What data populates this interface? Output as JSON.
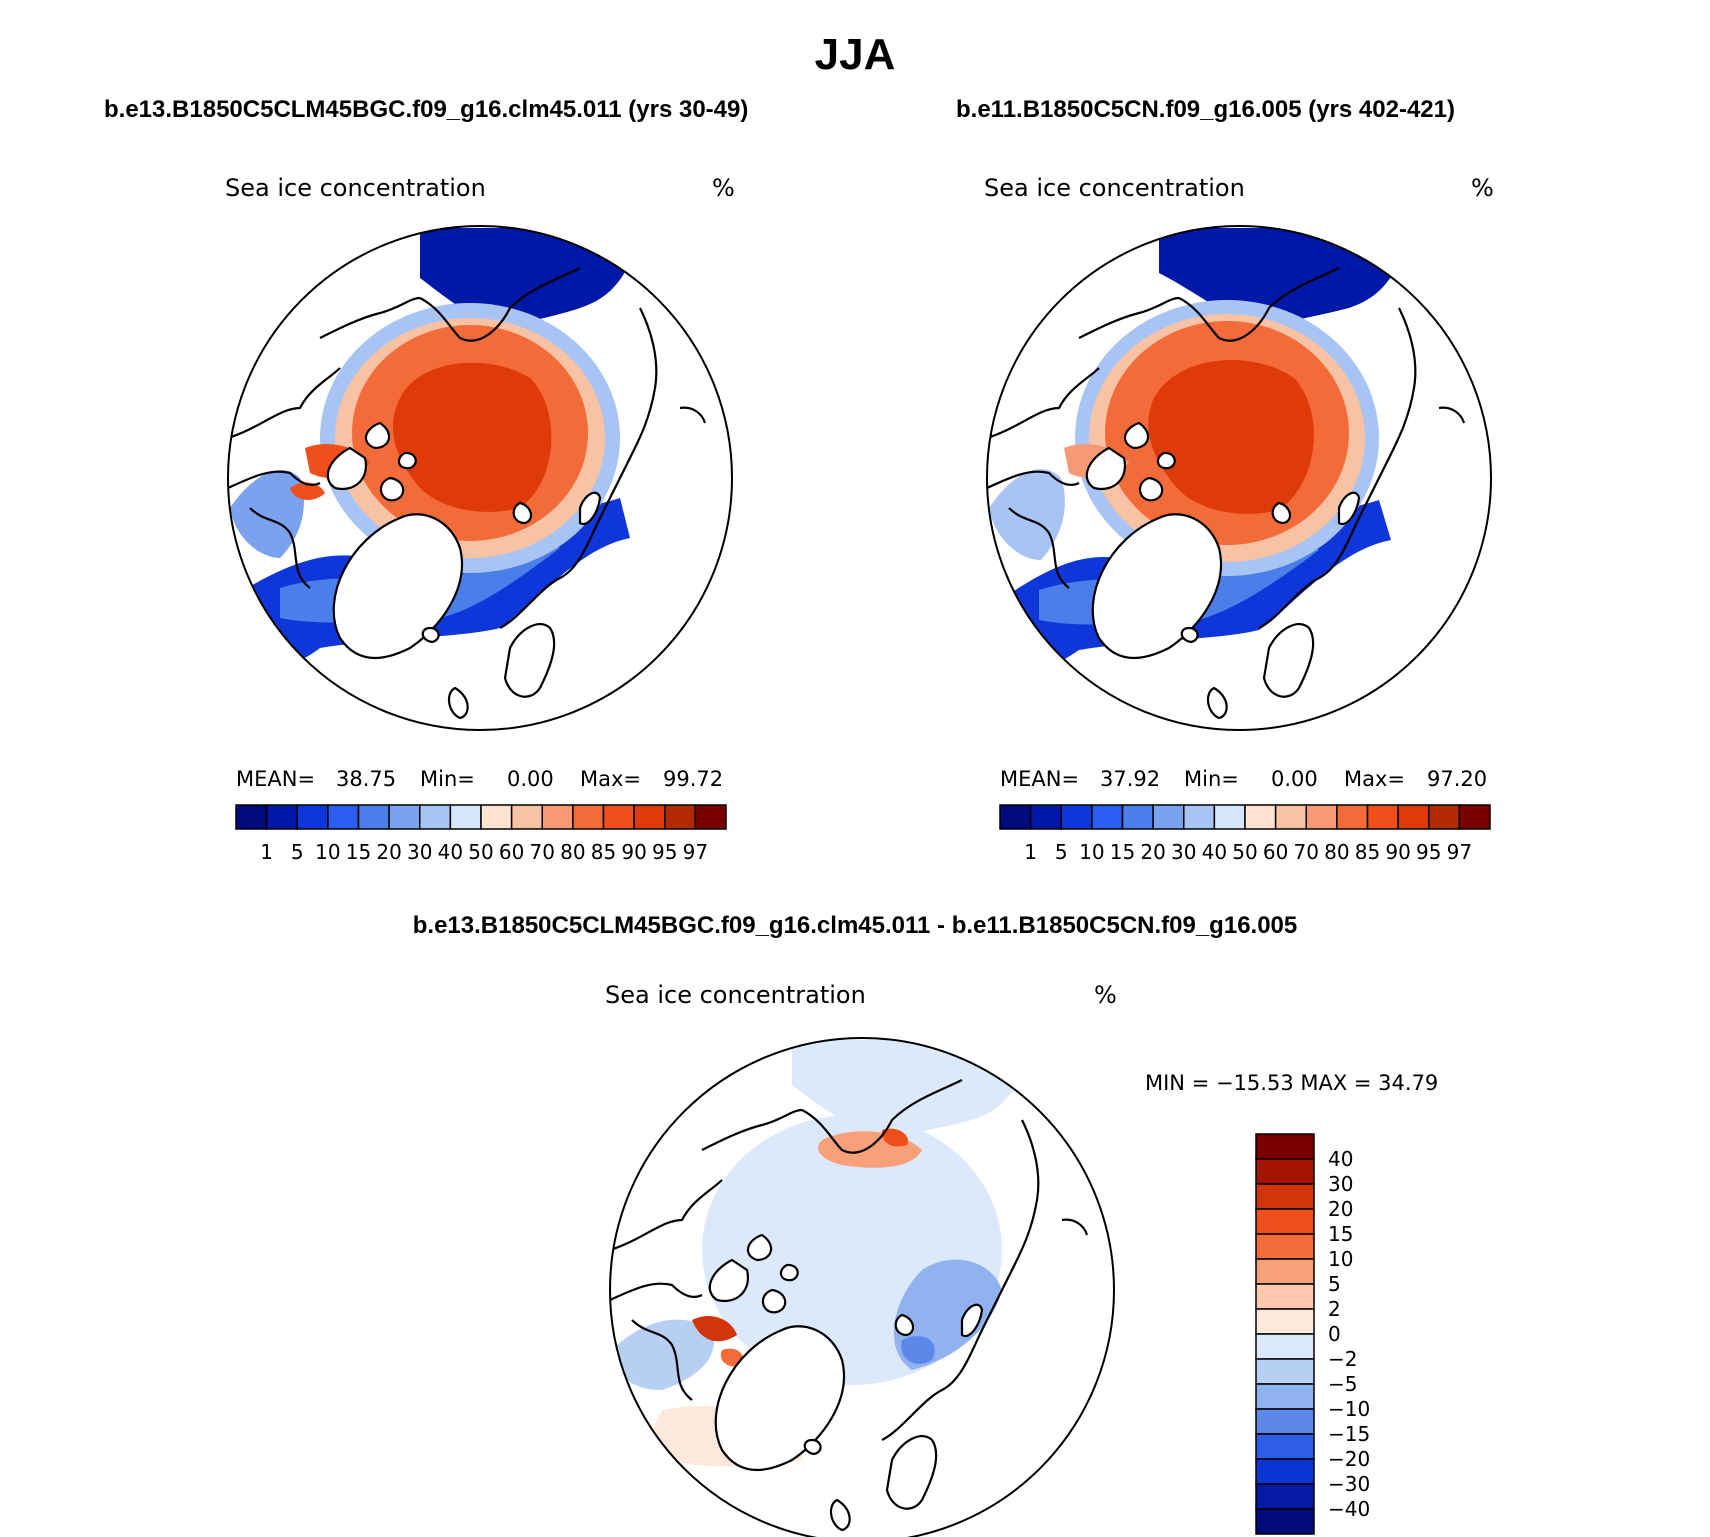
{
  "figure": {
    "title": "JJA",
    "diff_title": "b.e13.B1850C5CLM45BGC.f09_g16.clm45.011 - b.e11.B1850C5CN.f09_g16.005"
  },
  "panels": [
    {
      "case_title": "b.e13.B1850C5CLM45BGC.f09_g16.clm45.011 (yrs 30-49)",
      "variable": "Sea ice concentration",
      "units": "%",
      "stats": {
        "mean_label": "MEAN=",
        "mean": "38.75",
        "min_label": "Min=",
        "min": "0.00",
        "max_label": "Max=",
        "max": "99.72"
      }
    },
    {
      "case_title": "b.e11.B1850C5CN.f09_g16.005 (yrs 402-421)",
      "variable": "Sea ice concentration",
      "units": "%",
      "stats": {
        "mean_label": "MEAN=",
        "mean": "37.92",
        "min_label": "Min=",
        "min": "0.00",
        "max_label": "Max=",
        "max": "97.20"
      }
    },
    {
      "variable": "Sea ice concentration",
      "units": "%",
      "stats_text": "MIN = −15.53 MAX =  34.79"
    }
  ],
  "chart_data": [
    {
      "type": "heatmap",
      "title": "Sea ice concentration",
      "units": "%",
      "period": "JJA",
      "case": "b.e13.B1850C5CLM45BGC.f09_g16.clm45.011 (yrs 30-49)",
      "mean": 38.75,
      "min": 0.0,
      "max": 99.72,
      "colorbar_levels": [
        1,
        5,
        10,
        15,
        20,
        30,
        40,
        50,
        60,
        70,
        80,
        85,
        90,
        95,
        97
      ],
      "colorbar_labels": [
        "1",
        "5",
        "10",
        "15",
        "20",
        "30",
        "40",
        "50",
        "60",
        "70",
        "80",
        "85",
        "90",
        "95",
        "97"
      ],
      "colors": [
        "#000a7c",
        "#0018a8",
        "#0e36d8",
        "#2a5ef2",
        "#4a7ee8",
        "#7aa2ee",
        "#a8c4f4",
        "#d6e6fa",
        "#fde3d0",
        "#f8c2a4",
        "#f59a74",
        "#f46b3a",
        "#f04e1a",
        "#de3a0a",
        "#b02a02",
        "#7a0000"
      ],
      "projection": "north polar stereographic"
    },
    {
      "type": "heatmap",
      "title": "Sea ice concentration",
      "units": "%",
      "period": "JJA",
      "case": "b.e11.B1850C5CN.f09_g16.005 (yrs 402-421)",
      "mean": 37.92,
      "min": 0.0,
      "max": 97.2,
      "colorbar_levels": [
        1,
        5,
        10,
        15,
        20,
        30,
        40,
        50,
        60,
        70,
        80,
        85,
        90,
        95,
        97
      ],
      "colorbar_labels": [
        "1",
        "5",
        "10",
        "15",
        "20",
        "30",
        "40",
        "50",
        "60",
        "70",
        "80",
        "85",
        "90",
        "95",
        "97"
      ],
      "colors": [
        "#000a7c",
        "#0018a8",
        "#0e36d8",
        "#2a5ef2",
        "#4a7ee8",
        "#7aa2ee",
        "#a8c4f4",
        "#d6e6fa",
        "#fde3d0",
        "#f8c2a4",
        "#f59a74",
        "#f46b3a",
        "#f04e1a",
        "#de3a0a",
        "#b02a02",
        "#7a0000"
      ],
      "projection": "north polar stereographic"
    },
    {
      "type": "heatmap",
      "title": "Sea ice concentration",
      "units": "%",
      "period": "JJA",
      "case": "b.e13.B1850C5CLM45BGC.f09_g16.clm45.011 - b.e11.B1850C5CN.f09_g16.005",
      "min": -15.53,
      "max": 34.79,
      "colorbar_levels": [
        40,
        30,
        20,
        15,
        10,
        5,
        2,
        0,
        -2,
        -5,
        -10,
        -15,
        -20,
        -30,
        -40
      ],
      "colorbar_labels": [
        "40",
        "30",
        "20",
        "15",
        "10",
        "5",
        "2",
        "0",
        "−2",
        "−5",
        "−10",
        "−15",
        "−20",
        "−30",
        "−40"
      ],
      "colors": [
        "#7a0000",
        "#a41402",
        "#d2340c",
        "#f04e1a",
        "#f46b3a",
        "#f8a07a",
        "#fcc9ae",
        "#fde8dc",
        "#dce9fa",
        "#b8cff4",
        "#90b2ee",
        "#5c88ea",
        "#2e5ee8",
        "#0c36d4",
        "#041aa4",
        "#000a78"
      ],
      "projection": "north polar stereographic"
    }
  ]
}
